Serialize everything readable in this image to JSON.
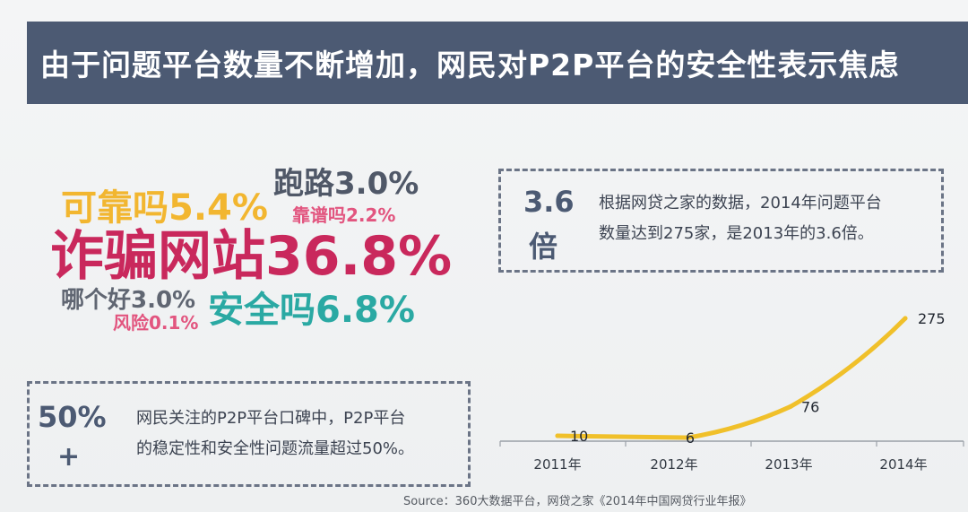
{
  "header": {
    "title": "由于问题平台数量不断增加，网民对P2P平台的安全性表示焦虑"
  },
  "keywords": [
    {
      "text": "可靠吗5.4%",
      "color": "#f2b630"
    },
    {
      "text": "跑路3.0%",
      "color": "#505868"
    },
    {
      "text": "靠谱吗2.2%",
      "color": "#e2557f"
    },
    {
      "text": "诈骗网站36.8%",
      "color": "#c9285c"
    },
    {
      "text": "哪个好3.0%",
      "color": "#606672"
    },
    {
      "text": "安全吗6.8%",
      "color": "#2aa9a3"
    },
    {
      "text": "风险0.1%",
      "color": "#e2557f"
    }
  ],
  "box_36": {
    "big_line1": "3.6",
    "big_line2": "倍",
    "text": "根据网贷之家的数据，2014年问题平台\n数量达到275家，是2013年的3.6倍。"
  },
  "box_50": {
    "big_line1": "50%",
    "big_line2": "+",
    "text": "网民关注的P2P平台口碑中，P2P平台\n的稳定性和安全性问题流量超过50%。"
  },
  "source": "Source：360大数据平台，网贷之家《2014年中国网贷行业年报》",
  "chart_data": {
    "type": "line",
    "categories": [
      "2011年",
      "2012年",
      "2013年",
      "2014年"
    ],
    "series": [
      {
        "values": [
          10,
          6,
          76,
          275
        ]
      }
    ],
    "line_color": "#f0c02a",
    "axis_color": "#9aa0a8"
  }
}
